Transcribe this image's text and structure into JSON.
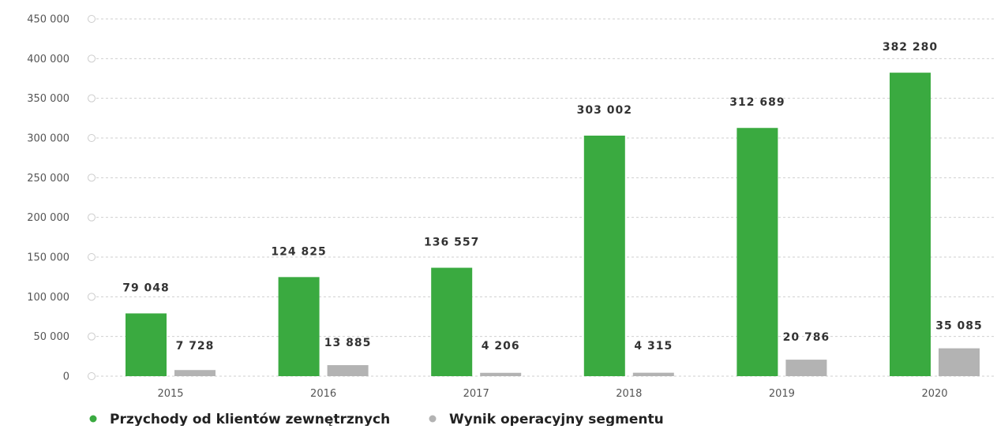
{
  "chart_data": {
    "type": "bar",
    "categories": [
      "2015",
      "2016",
      "2017",
      "2018",
      "2019",
      "2020"
    ],
    "series": [
      {
        "name": "Przychody od klientów zewnętrznych",
        "color": "#3aaa40",
        "values": [
          79048,
          124825,
          136557,
          303002,
          312689,
          382280
        ],
        "labels": [
          "79 048",
          "124 825",
          "136 557",
          "303 002",
          "312 689",
          "382 280"
        ]
      },
      {
        "name": "Wynik operacyjny segmentu",
        "color": "#b3b3b3",
        "values": [
          7728,
          13885,
          4206,
          4315,
          20786,
          35085
        ],
        "labels": [
          "7 728",
          "13 885",
          "4 206",
          "4 315",
          "20 786",
          "35 085"
        ]
      }
    ],
    "yticks": [
      0,
      50000,
      100000,
      150000,
      200000,
      250000,
      300000,
      350000,
      400000,
      450000
    ],
    "ytick_labels": [
      "0",
      "50 000",
      "100 000",
      "150 000",
      "200 000",
      "250 000",
      "300 000",
      "350 000",
      "400 000",
      "450 000"
    ],
    "ylim": [
      0,
      450000
    ],
    "grid": true,
    "grid_style": "dashed",
    "legend_position": "bottom-left"
  }
}
